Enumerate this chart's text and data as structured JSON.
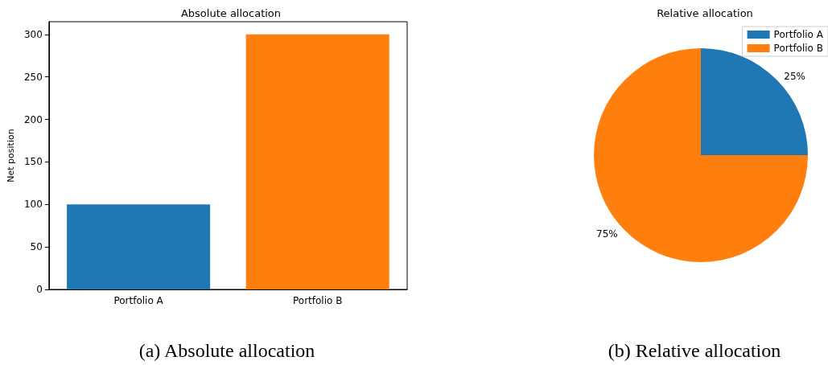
{
  "chart_data": [
    {
      "type": "bar",
      "title": "Absolute allocation",
      "ylabel": "Net position",
      "categories": [
        "Portfolio A",
        "Portfolio B"
      ],
      "values": [
        100,
        300
      ],
      "colors": [
        "#1f77b4",
        "#ff7f0e"
      ],
      "ylim": [
        0,
        315
      ],
      "yticks": [
        0,
        50,
        100,
        150,
        200,
        250,
        300
      ],
      "grid": false,
      "legend": false,
      "annotations": [
        "(a) Absolute allocation"
      ]
    },
    {
      "type": "pie",
      "title": "Relative allocation",
      "categories": [
        "Portfolio A",
        "Portfolio B"
      ],
      "values": [
        25,
        75
      ],
      "colors": [
        "#1f77b4",
        "#ff7f0e"
      ],
      "value_labels": [
        "25%",
        "75%"
      ],
      "legend": "top right",
      "annotations": [
        "(b) Relative allocation"
      ]
    }
  ]
}
